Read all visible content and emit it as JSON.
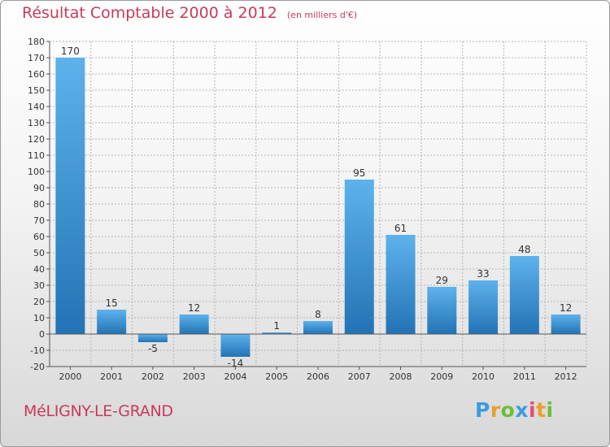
{
  "title": "Résultat Comptable 2000 à 2012",
  "unit": "(en milliers d'€)",
  "commune": "MéLIGNY-LE-GRAND",
  "logo": {
    "letters": [
      {
        "char": "P",
        "color": "#3c9be0"
      },
      {
        "char": "r",
        "color": "#e8a02a"
      },
      {
        "char": "o",
        "color": "#6bbf3a"
      },
      {
        "char": "x",
        "color": "#3c9be0"
      },
      {
        "char": "i",
        "color": "#e84c70"
      },
      {
        "char": "t",
        "color": "#e8a02a"
      },
      {
        "char": "i",
        "color": "#6bbf3a"
      }
    ]
  },
  "colors": {
    "title": "#c83a5a",
    "bar_top": "#5eb2ec",
    "bar_bottom": "#2273b5",
    "grid": "#b4b4b4",
    "axis": "#555555"
  },
  "chart_data": {
    "type": "bar",
    "title": "Résultat Comptable 2000 à 2012",
    "xlabel": "",
    "ylabel": "(en milliers d'€)",
    "categories": [
      "2000",
      "2001",
      "2002",
      "2003",
      "2004",
      "2005",
      "2006",
      "2007",
      "2008",
      "2009",
      "2010",
      "2011",
      "2012"
    ],
    "values": [
      170,
      15,
      -5,
      12,
      -14,
      1,
      8,
      95,
      61,
      29,
      33,
      48,
      12
    ],
    "ylim": [
      -20,
      180
    ],
    "yticks": [
      -20,
      -10,
      0,
      10,
      20,
      30,
      40,
      50,
      60,
      70,
      80,
      90,
      100,
      110,
      120,
      130,
      140,
      150,
      160,
      170,
      180
    ],
    "grid": true
  }
}
